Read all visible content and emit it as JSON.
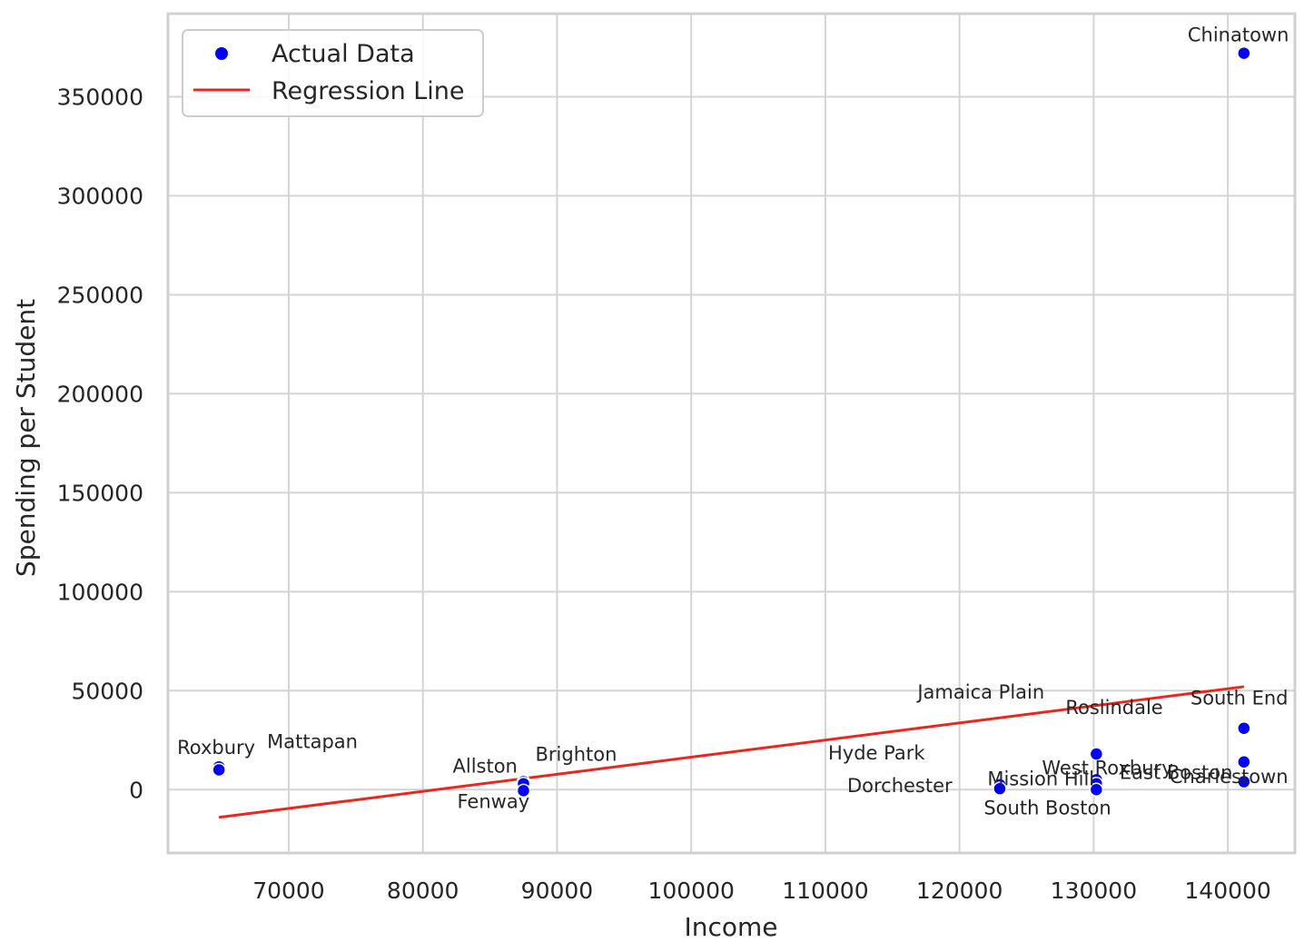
{
  "chart_data": {
    "type": "scatter",
    "xlabel": "Income",
    "ylabel": "Spending per Student",
    "xlim": [
      61000,
      145000
    ],
    "ylim": [
      -32000,
      392000
    ],
    "xticks": [
      70000,
      80000,
      90000,
      100000,
      110000,
      120000,
      130000,
      140000
    ],
    "yticks": [
      0,
      50000,
      100000,
      150000,
      200000,
      250000,
      300000,
      350000
    ],
    "grid": true,
    "legend_position": "top-left",
    "legend": [
      "Actual Data",
      "Regression Line"
    ],
    "series": [
      {
        "name": "Actual Data",
        "kind": "scatter",
        "color": "#0000ff",
        "points": [
          {
            "label": "Roxbury",
            "x": 64800,
            "y": 11500
          },
          {
            "label": "Mattapan",
            "x": 64800,
            "y": 10000
          },
          {
            "label": "Allston",
            "x": 87500,
            "y": 4000
          },
          {
            "label": "Brighton",
            "x": 87500,
            "y": 3000
          },
          {
            "label": "Fenway",
            "x": 87500,
            "y": -500
          },
          {
            "label": "Hyde Park",
            "x": 123000,
            "y": 2500
          },
          {
            "label": "Dorchester",
            "x": 123000,
            "y": 500
          },
          {
            "label": "Jamaica Plain",
            "x": 130200,
            "y": 18500
          },
          {
            "label": "Roslindale",
            "x": 130200,
            "y": 18000
          },
          {
            "label": "West Roxbury",
            "x": 130200,
            "y": 5000
          },
          {
            "label": "Mission Hill",
            "x": 130200,
            "y": 3000
          },
          {
            "label": "South Boston",
            "x": 130200,
            "y": 0
          },
          {
            "label": "Chinatown",
            "x": 141200,
            "y": 372000
          },
          {
            "label": "South End",
            "x": 141200,
            "y": 31000
          },
          {
            "label": "Charlestown",
            "x": 141200,
            "y": 14000
          },
          {
            "label": "East Boston",
            "x": 141200,
            "y": 4000
          }
        ]
      },
      {
        "name": "Regression Line",
        "kind": "line",
        "color": "#e8281e",
        "points": [
          {
            "x": 64800,
            "y": -14000
          },
          {
            "x": 141200,
            "y": 52000
          }
        ]
      }
    ]
  }
}
